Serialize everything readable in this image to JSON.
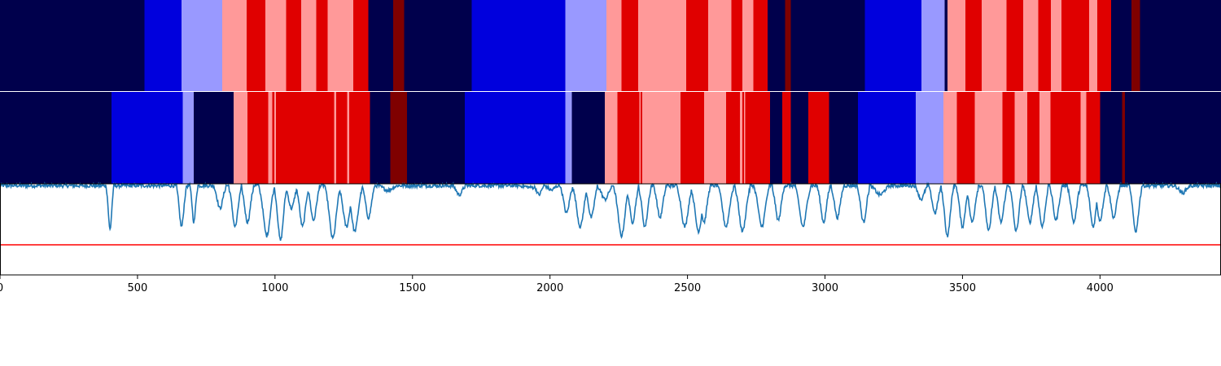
{
  "chart_data": {
    "type": "heatmap",
    "xlim": [
      0,
      4440
    ],
    "xticks": [
      0,
      500,
      1000,
      1500,
      2000,
      2500,
      3000,
      3500,
      4000
    ],
    "xtick_labels": [
      "0",
      "500",
      "1000",
      "1500",
      "2000",
      "2500",
      "3000",
      "3500",
      "4000"
    ],
    "state_colors": {
      "0": "#00004c",
      "1": "#0000dd",
      "2": "#9999ff",
      "3": "#ff9999",
      "4": "#e00000",
      "5": "#7f0000"
    },
    "rows": [
      {
        "segments": [
          [
            0,
            525,
            0
          ],
          [
            525,
            660,
            1
          ],
          [
            660,
            808,
            2
          ],
          [
            808,
            897,
            3
          ],
          [
            897,
            965,
            4
          ],
          [
            965,
            1040,
            3
          ],
          [
            1040,
            1095,
            4
          ],
          [
            1095,
            1150,
            3
          ],
          [
            1150,
            1192,
            4
          ],
          [
            1192,
            1285,
            3
          ],
          [
            1285,
            1340,
            4
          ],
          [
            1340,
            1430,
            0
          ],
          [
            1430,
            1470,
            5
          ],
          [
            1470,
            1715,
            0
          ],
          [
            1715,
            2055,
            1
          ],
          [
            2055,
            2205,
            2
          ],
          [
            2205,
            2260,
            3
          ],
          [
            2260,
            2320,
            4
          ],
          [
            2320,
            2495,
            3
          ],
          [
            2495,
            2575,
            4
          ],
          [
            2575,
            2660,
            3
          ],
          [
            2660,
            2700,
            4
          ],
          [
            2700,
            2740,
            3
          ],
          [
            2740,
            2792,
            4
          ],
          [
            2792,
            2855,
            0
          ],
          [
            2855,
            2875,
            5
          ],
          [
            2875,
            3145,
            0
          ],
          [
            3145,
            3350,
            1
          ],
          [
            3350,
            3435,
            2
          ],
          [
            3435,
            3445,
            0
          ],
          [
            3445,
            3510,
            3
          ],
          [
            3510,
            3570,
            4
          ],
          [
            3570,
            3660,
            3
          ],
          [
            3660,
            3720,
            4
          ],
          [
            3720,
            3775,
            3
          ],
          [
            3775,
            3822,
            4
          ],
          [
            3822,
            3860,
            3
          ],
          [
            3860,
            3960,
            4
          ],
          [
            3960,
            3990,
            3
          ],
          [
            3990,
            4040,
            4
          ],
          [
            4040,
            4115,
            0
          ],
          [
            4115,
            4145,
            5
          ],
          [
            4145,
            4440,
            0
          ]
        ]
      },
      {
        "segments": [
          [
            0,
            405,
            0
          ],
          [
            405,
            665,
            1
          ],
          [
            665,
            705,
            2
          ],
          [
            705,
            850,
            0
          ],
          [
            850,
            900,
            3
          ],
          [
            900,
            975,
            4
          ],
          [
            975,
            990,
            3
          ],
          [
            990,
            997,
            4
          ],
          [
            997,
            1003,
            3
          ],
          [
            1003,
            1040,
            4
          ],
          [
            1040,
            1215,
            4
          ],
          [
            1215,
            1222,
            3
          ],
          [
            1222,
            1263,
            4
          ],
          [
            1263,
            1270,
            3
          ],
          [
            1270,
            1345,
            4
          ],
          [
            1345,
            1420,
            0
          ],
          [
            1420,
            1480,
            5
          ],
          [
            1480,
            1690,
            0
          ],
          [
            1690,
            2055,
            1
          ],
          [
            2055,
            2080,
            2
          ],
          [
            2080,
            2200,
            0
          ],
          [
            2200,
            2245,
            3
          ],
          [
            2245,
            2325,
            4
          ],
          [
            2325,
            2330,
            3
          ],
          [
            2330,
            2335,
            4
          ],
          [
            2335,
            2475,
            3
          ],
          [
            2475,
            2560,
            4
          ],
          [
            2560,
            2640,
            3
          ],
          [
            2640,
            2690,
            4
          ],
          [
            2690,
            2700,
            3
          ],
          [
            2700,
            2705,
            4
          ],
          [
            2705,
            2710,
            3
          ],
          [
            2710,
            2800,
            4
          ],
          [
            2800,
            2845,
            0
          ],
          [
            2845,
            2875,
            4
          ],
          [
            2875,
            2940,
            0
          ],
          [
            2940,
            3015,
            4
          ],
          [
            3015,
            3120,
            0
          ],
          [
            3120,
            3330,
            1
          ],
          [
            3330,
            3430,
            2
          ],
          [
            3430,
            3480,
            3
          ],
          [
            3480,
            3545,
            4
          ],
          [
            3545,
            3645,
            3
          ],
          [
            3645,
            3690,
            4
          ],
          [
            3690,
            3735,
            3
          ],
          [
            3735,
            3780,
            4
          ],
          [
            3780,
            3820,
            3
          ],
          [
            3820,
            3930,
            4
          ],
          [
            3930,
            3950,
            3
          ],
          [
            3950,
            4000,
            4
          ],
          [
            4000,
            4080,
            0
          ],
          [
            4080,
            4090,
            5
          ],
          [
            4090,
            4440,
            0
          ]
        ]
      }
    ],
    "line_panel": {
      "ylim": [
        0,
        1
      ],
      "series_color": "#1f77b4",
      "threshold": 0.33,
      "threshold_color": "#ff0000",
      "dips": [
        [
          400,
          0.52,
          6
        ],
        [
          660,
          0.55,
          8
        ],
        [
          705,
          0.6,
          6
        ],
        [
          800,
          0.75,
          10
        ],
        [
          855,
          0.55,
          10
        ],
        [
          900,
          0.6,
          10
        ],
        [
          970,
          0.45,
          12
        ],
        [
          1020,
          0.4,
          10
        ],
        [
          1060,
          0.75,
          10
        ],
        [
          1100,
          0.55,
          10
        ],
        [
          1140,
          0.62,
          10
        ],
        [
          1210,
          0.42,
          12
        ],
        [
          1260,
          0.55,
          12
        ],
        [
          1290,
          0.5,
          12
        ],
        [
          1340,
          0.65,
          10
        ],
        [
          1410,
          0.95,
          15
        ],
        [
          1670,
          0.9,
          10
        ],
        [
          1935,
          0.98,
          20
        ],
        [
          1960,
          0.9,
          8
        ],
        [
          2005,
          0.95,
          10
        ],
        [
          2060,
          0.7,
          10
        ],
        [
          2110,
          0.55,
          12
        ],
        [
          2150,
          0.65,
          10
        ],
        [
          2200,
          0.85,
          12
        ],
        [
          2260,
          0.45,
          12
        ],
        [
          2300,
          0.6,
          10
        ],
        [
          2345,
          0.55,
          10
        ],
        [
          2400,
          0.65,
          10
        ],
        [
          2490,
          0.55,
          12
        ],
        [
          2540,
          0.5,
          12
        ],
        [
          2560,
          0.6,
          10
        ],
        [
          2640,
          0.55,
          12
        ],
        [
          2700,
          0.5,
          12
        ],
        [
          2770,
          0.55,
          12
        ],
        [
          2830,
          0.62,
          10
        ],
        [
          2920,
          0.55,
          12
        ],
        [
          2995,
          0.6,
          10
        ],
        [
          3045,
          0.65,
          10
        ],
        [
          3140,
          0.6,
          10
        ],
        [
          3200,
          0.9,
          15
        ],
        [
          3350,
          0.85,
          10
        ],
        [
          3400,
          0.7,
          10
        ],
        [
          3445,
          0.45,
          10
        ],
        [
          3500,
          0.55,
          10
        ],
        [
          3535,
          0.6,
          10
        ],
        [
          3595,
          0.5,
          10
        ],
        [
          3640,
          0.6,
          10
        ],
        [
          3695,
          0.5,
          10
        ],
        [
          3745,
          0.6,
          10
        ],
        [
          3790,
          0.55,
          10
        ],
        [
          3840,
          0.62,
          10
        ],
        [
          3905,
          0.6,
          10
        ],
        [
          3975,
          0.55,
          10
        ],
        [
          4000,
          0.62,
          10
        ],
        [
          4050,
          0.65,
          10
        ],
        [
          4130,
          0.5,
          10
        ],
        [
          4300,
          0.92,
          12
        ]
      ]
    }
  }
}
